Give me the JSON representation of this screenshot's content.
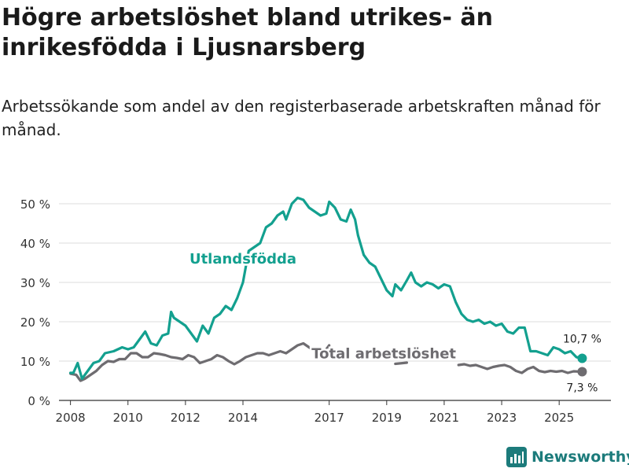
{
  "title": "Högre arbetslöshet bland utrikes- än inrikesfödda i Ljusnarsberg",
  "subtitle": "Arbetssökande som andel av den registerbaserade arbetskraften månad för månad.",
  "brand": "Newsworthy",
  "colors": {
    "utlandsfodda": "#13a08f",
    "total": "#6e6c70",
    "grid": "#dddddd",
    "axis": "#333333",
    "brand": "#1c7b7b"
  },
  "chart_data": {
    "type": "line",
    "title": "Högre arbetslöshet bland utrikes- än inrikesfödda i Ljusnarsberg",
    "xlabel": "",
    "ylabel": "",
    "ylim": [
      0,
      50
    ],
    "xlim": [
      2007.6,
      2026.8
    ],
    "grid": true,
    "y_ticks": [
      0,
      10,
      20,
      30,
      40,
      50
    ],
    "y_tick_labels": [
      "0 %",
      "10 %",
      "20 %",
      "30 %",
      "40 %",
      "50 %"
    ],
    "x_ticks": [
      2008,
      2010,
      2012,
      2014,
      2017,
      2019,
      2021,
      2023,
      2025
    ],
    "x_tick_labels": [
      "2008",
      "2010",
      "2012",
      "2014",
      "2017",
      "2019",
      "2021",
      "2023",
      "2025"
    ],
    "series": [
      {
        "name": "Utlandsfödda",
        "label_x": 2014.0,
        "label_y": 36,
        "end_label": "10,7 %",
        "end_value": 10.7,
        "points": [
          [
            2008.0,
            7
          ],
          [
            2008.1,
            7
          ],
          [
            2008.25,
            9.5
          ],
          [
            2008.4,
            5.5
          ],
          [
            2008.6,
            7.5
          ],
          [
            2008.8,
            9.5
          ],
          [
            2009.0,
            10
          ],
          [
            2009.2,
            12
          ],
          [
            2009.5,
            12.5
          ],
          [
            2009.8,
            13.5
          ],
          [
            2010.0,
            13
          ],
          [
            2010.2,
            13.5
          ],
          [
            2010.4,
            15.5
          ],
          [
            2010.6,
            17.5
          ],
          [
            2010.8,
            14.5
          ],
          [
            2011.0,
            14
          ],
          [
            2011.2,
            16.5
          ],
          [
            2011.4,
            17
          ],
          [
            2011.5,
            22.5
          ],
          [
            2011.6,
            21
          ],
          [
            2011.8,
            20
          ],
          [
            2012.0,
            19
          ],
          [
            2012.2,
            17
          ],
          [
            2012.4,
            15
          ],
          [
            2012.6,
            19
          ],
          [
            2012.8,
            17
          ],
          [
            2013.0,
            21
          ],
          [
            2013.2,
            22
          ],
          [
            2013.4,
            24
          ],
          [
            2013.6,
            23
          ],
          [
            2013.8,
            26
          ],
          [
            2014.0,
            30
          ],
          [
            2014.2,
            38
          ],
          [
            2014.4,
            39
          ],
          [
            2014.6,
            40
          ],
          [
            2014.8,
            44
          ],
          [
            2015.0,
            45
          ],
          [
            2015.2,
            47
          ],
          [
            2015.4,
            48
          ],
          [
            2015.5,
            46
          ],
          [
            2015.7,
            50
          ],
          [
            2015.9,
            51.5
          ],
          [
            2016.1,
            51
          ],
          [
            2016.3,
            49
          ],
          [
            2016.5,
            48
          ],
          [
            2016.7,
            47
          ],
          [
            2016.9,
            47.5
          ],
          [
            2017.0,
            50.5
          ],
          [
            2017.2,
            49
          ],
          [
            2017.4,
            46
          ],
          [
            2017.6,
            45.5
          ],
          [
            2017.75,
            48.5
          ],
          [
            2017.9,
            46
          ],
          [
            2018.0,
            42
          ],
          [
            2018.2,
            37
          ],
          [
            2018.4,
            35
          ],
          [
            2018.6,
            34
          ],
          [
            2018.8,
            31
          ],
          [
            2019.0,
            28
          ],
          [
            2019.2,
            26.5
          ],
          [
            2019.3,
            29.5
          ],
          [
            2019.5,
            28
          ],
          [
            2019.7,
            30.5
          ],
          [
            2019.85,
            32.5
          ],
          [
            2020.0,
            30
          ],
          [
            2020.2,
            29
          ],
          [
            2020.4,
            30
          ],
          [
            2020.6,
            29.5
          ],
          [
            2020.8,
            28.5
          ],
          [
            2021.0,
            29.5
          ],
          [
            2021.2,
            29
          ],
          [
            2021.4,
            25
          ],
          [
            2021.6,
            22
          ],
          [
            2021.8,
            20.5
          ],
          [
            2022.0,
            20
          ],
          [
            2022.2,
            20.5
          ],
          [
            2022.4,
            19.5
          ],
          [
            2022.6,
            20
          ],
          [
            2022.8,
            19
          ],
          [
            2023.0,
            19.5
          ],
          [
            2023.2,
            17.5
          ],
          [
            2023.4,
            17
          ],
          [
            2023.6,
            18.5
          ],
          [
            2023.8,
            18.5
          ],
          [
            2024.0,
            12.5
          ],
          [
            2024.2,
            12.5
          ],
          [
            2024.4,
            12
          ],
          [
            2024.6,
            11.5
          ],
          [
            2024.8,
            13.5
          ],
          [
            2025.0,
            13
          ],
          [
            2025.2,
            12
          ],
          [
            2025.4,
            12.5
          ],
          [
            2025.6,
            11
          ],
          [
            2025.8,
            10.7
          ]
        ]
      },
      {
        "name": "Total arbetslöshet",
        "label_x": 2018.9,
        "label_y": 11.9,
        "end_label": "7,3 %",
        "end_value": 7.3,
        "points": [
          [
            2008.0,
            6.8
          ],
          [
            2008.2,
            6.5
          ],
          [
            2008.35,
            5
          ],
          [
            2008.5,
            5.5
          ],
          [
            2008.7,
            6.5
          ],
          [
            2008.9,
            7.5
          ],
          [
            2009.1,
            9
          ],
          [
            2009.3,
            10
          ],
          [
            2009.5,
            9.8
          ],
          [
            2009.7,
            10.5
          ],
          [
            2009.9,
            10.5
          ],
          [
            2010.1,
            12
          ],
          [
            2010.3,
            12
          ],
          [
            2010.5,
            11
          ],
          [
            2010.7,
            11
          ],
          [
            2010.9,
            12
          ],
          [
            2011.1,
            11.8
          ],
          [
            2011.3,
            11.5
          ],
          [
            2011.5,
            11
          ],
          [
            2011.7,
            10.8
          ],
          [
            2011.9,
            10.5
          ],
          [
            2012.1,
            11.5
          ],
          [
            2012.3,
            11
          ],
          [
            2012.5,
            9.5
          ],
          [
            2012.7,
            10
          ],
          [
            2012.9,
            10.5
          ],
          [
            2013.1,
            11.5
          ],
          [
            2013.3,
            11
          ],
          [
            2013.5,
            10
          ],
          [
            2013.7,
            9.2
          ],
          [
            2013.9,
            10
          ],
          [
            2014.1,
            11
          ],
          [
            2014.3,
            11.5
          ],
          [
            2014.5,
            12
          ],
          [
            2014.7,
            12
          ],
          [
            2014.9,
            11.5
          ],
          [
            2015.1,
            12
          ],
          [
            2015.3,
            12.5
          ],
          [
            2015.5,
            12
          ],
          [
            2015.7,
            13
          ],
          [
            2015.9,
            14
          ],
          [
            2016.1,
            14.5
          ],
          [
            2016.3,
            13.5
          ],
          [
            2016.5,
            12.5
          ],
          [
            2016.7,
            12
          ],
          [
            2016.9,
            13
          ],
          [
            2017.0,
            14
          ],
          [
            2019.3,
            9.3
          ],
          [
            2019.7,
            9.6
          ],
          [
            2021.5,
            9
          ],
          [
            2021.7,
            9.2
          ],
          [
            2021.9,
            8.8
          ],
          [
            2022.1,
            9
          ],
          [
            2022.3,
            8.5
          ],
          [
            2022.5,
            8
          ],
          [
            2022.7,
            8.5
          ],
          [
            2022.9,
            8.8
          ],
          [
            2023.1,
            9
          ],
          [
            2023.3,
            8.5
          ],
          [
            2023.5,
            7.5
          ],
          [
            2023.7,
            7
          ],
          [
            2023.9,
            8
          ],
          [
            2024.1,
            8.5
          ],
          [
            2024.3,
            7.5
          ],
          [
            2024.5,
            7.2
          ],
          [
            2024.7,
            7.5
          ],
          [
            2024.9,
            7.3
          ],
          [
            2025.1,
            7.5
          ],
          [
            2025.3,
            7
          ],
          [
            2025.5,
            7.4
          ],
          [
            2025.8,
            7.3
          ]
        ]
      }
    ]
  }
}
